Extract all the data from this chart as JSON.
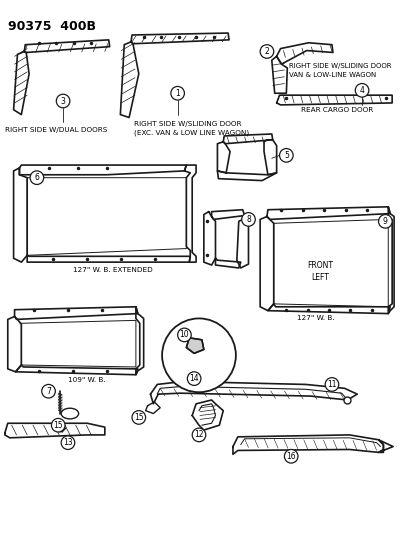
{
  "title": "90375  400B",
  "background_color": "#ffffff",
  "line_color": "#1a1a1a",
  "labels": {
    "right_dual": "RIGHT SIDE W/DUAL DOORS",
    "right_sliding1": "RIGHT SIDE W/SLIDING DOOR",
    "right_sliding2": "(EXC. VAN & LOW LINE WAGON)",
    "right_sliding_van1": "RIGHT SIDE W/SLIDING DOOR",
    "right_sliding_van2": "VAN & LOW-LINE WAGON",
    "rear_cargo": "REAR CARGO DOOR",
    "wb127_ext": "127\" W. B. EXTENDED",
    "wb127": "127\" W. B.",
    "wb109": "109\" W. B.",
    "front": "FRONT",
    "left": "LEFT"
  }
}
